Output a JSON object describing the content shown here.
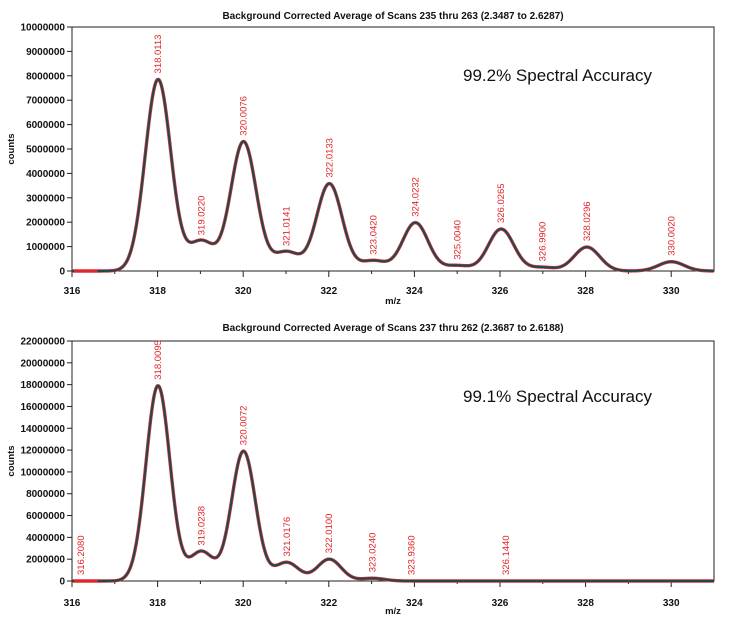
{
  "chart_data": [
    {
      "type": "line",
      "title": "Background Corrected Average of Scans 235 thru 263 (2.3487 to 2.6287)",
      "xlabel": "m/z",
      "ylabel": "counts",
      "xlim": [
        316,
        331
      ],
      "ylim": [
        0,
        10000000
      ],
      "x_ticks": [
        "316",
        "318",
        "320",
        "322",
        "324",
        "326",
        "328",
        "330"
      ],
      "y_ticks": [
        "0",
        "1000000",
        "2000000",
        "3000000",
        "4000000",
        "5000000",
        "6000000",
        "7000000",
        "8000000",
        "9000000",
        "10000000"
      ],
      "annotation": "99.2% Spectral Accuracy",
      "peaks": [
        {
          "x": 318.0113,
          "y": 7850000,
          "label": "318.0113"
        },
        {
          "x": 319.022,
          "y": 1220000,
          "label": "319.0220"
        },
        {
          "x": 320.0076,
          "y": 5300000,
          "label": "320.0076"
        },
        {
          "x": 321.0141,
          "y": 780000,
          "label": "321.0141"
        },
        {
          "x": 322.0133,
          "y": 3580000,
          "label": "322.0133"
        },
        {
          "x": 323.042,
          "y": 420000,
          "label": "323.0420"
        },
        {
          "x": 324.0232,
          "y": 1980000,
          "label": "324.0232"
        },
        {
          "x": 325.004,
          "y": 220000,
          "label": "325.0040"
        },
        {
          "x": 326.0265,
          "y": 1720000,
          "label": "326.0265"
        },
        {
          "x": 326.99,
          "y": 150000,
          "label": "326.9900"
        },
        {
          "x": 328.0296,
          "y": 980000,
          "label": "328.0296"
        },
        {
          "x": 330.002,
          "y": 380000,
          "label": "330.0020"
        }
      ]
    },
    {
      "type": "line",
      "title": "Background Corrected Average of Scans 237 thru 262 (2.3687 to 2.6188)",
      "xlabel": "m/z",
      "ylabel": "counts",
      "xlim": [
        316,
        331
      ],
      "ylim": [
        0,
        22000000
      ],
      "x_ticks": [
        "316",
        "318",
        "320",
        "322",
        "324",
        "326",
        "328",
        "330"
      ],
      "y_ticks": [
        "0",
        "2000000",
        "4000000",
        "6000000",
        "8000000",
        "10000000",
        "12000000",
        "14000000",
        "16000000",
        "18000000",
        "20000000",
        "22000000"
      ],
      "annotation": "99.1% Spectral Accuracy",
      "peaks": [
        {
          "x": 316.208,
          "y": 0,
          "label": "316.2080"
        },
        {
          "x": 318.0095,
          "y": 17900000,
          "label": "318.0095"
        },
        {
          "x": 319.0238,
          "y": 2700000,
          "label": "319.0238"
        },
        {
          "x": 320.0072,
          "y": 11900000,
          "label": "320.0072"
        },
        {
          "x": 321.0176,
          "y": 1700000,
          "label": "321.0176"
        },
        {
          "x": 322.01,
          "y": 2000000,
          "label": "322.0100"
        },
        {
          "x": 323.024,
          "y": 250000,
          "label": "323.0240"
        },
        {
          "x": 323.936,
          "y": 0,
          "label": "323.9360"
        },
        {
          "x": 326.144,
          "y": 0,
          "label": "326.1440"
        }
      ]
    }
  ]
}
